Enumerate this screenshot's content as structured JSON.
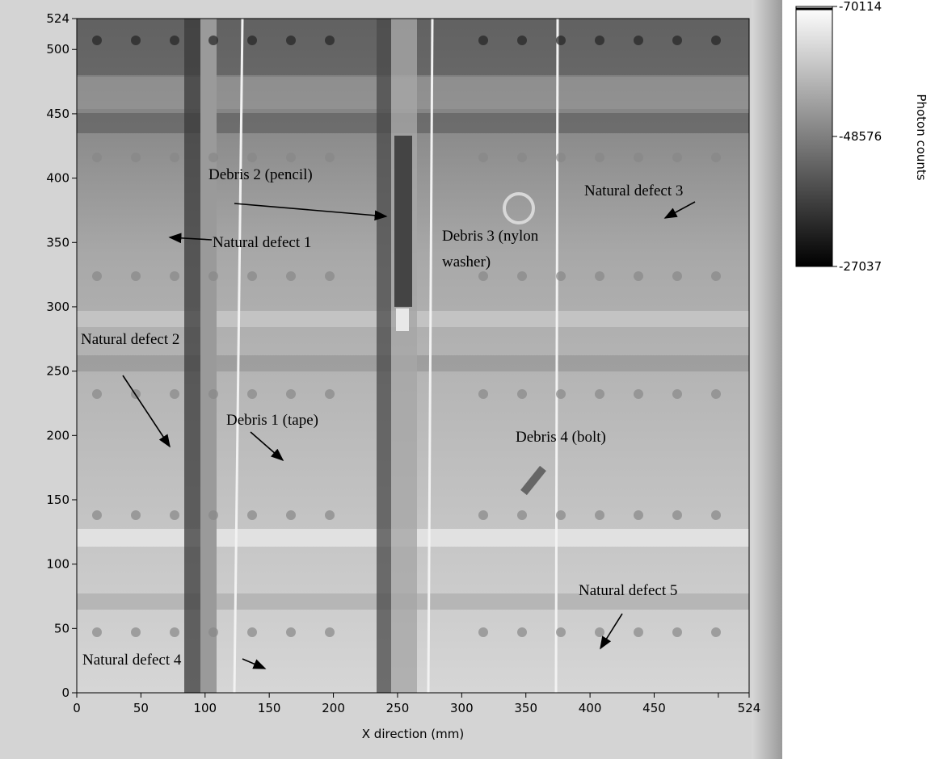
{
  "chart_data": {
    "type": "heatmap",
    "xlabel": "X direction (mm)",
    "xlim": [
      0,
      524
    ],
    "xticks": [
      0,
      50,
      100,
      150,
      200,
      250,
      300,
      350,
      400,
      450,
      {
        "value": 500,
        "label": null
      },
      524
    ],
    "ylim": [
      0,
      524
    ],
    "yticks": [
      0,
      50,
      100,
      150,
      200,
      250,
      300,
      350,
      400,
      450,
      500,
      524
    ],
    "colorbar": {
      "label": "Photon counts",
      "lim": [
        -27037,
        -70114
      ],
      "ticks": [
        -70114,
        -48576,
        -27037
      ]
    },
    "annotations": [
      {
        "lines": [
          "Debris 2 (pencil)"
        ]
      },
      {
        "lines": [
          "Natural defect 1"
        ]
      },
      {
        "lines": [
          "Debris 3 (nylon",
          "washer)"
        ]
      },
      {
        "lines": [
          "Natural defect 3"
        ]
      },
      {
        "lines": [
          "Natural defect 2"
        ]
      },
      {
        "lines": [
          "Debris 1 (tape)"
        ]
      },
      {
        "lines": [
          "Debris 4 (bolt)"
        ]
      },
      {
        "lines": [
          "Natural defect 5"
        ]
      },
      {
        "lines": [
          "Natural defect 4"
        ]
      }
    ]
  }
}
